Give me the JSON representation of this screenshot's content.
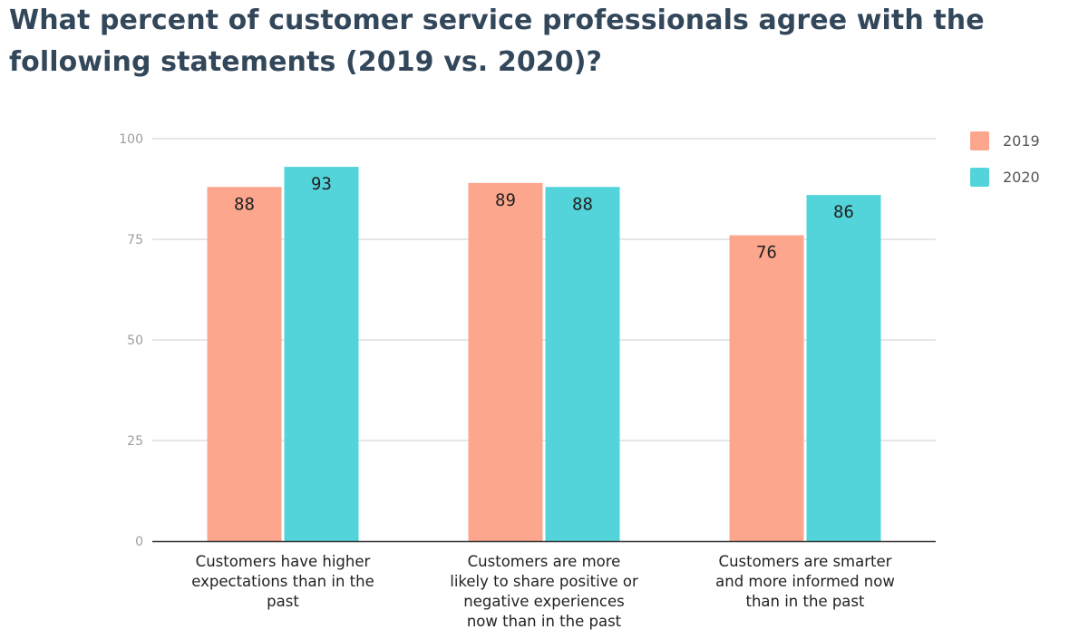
{
  "title": "What percent of customer service professionals agree with the following statements (2019 vs. 2020)?",
  "chart_data": {
    "type": "bar",
    "title": "What percent of customer service professionals agree with the following statements (2019 vs. 2020)?",
    "xlabel": "",
    "ylabel": "",
    "ylim": [
      0,
      100
    ],
    "yticks": [
      0,
      25,
      50,
      75,
      100
    ],
    "grid": true,
    "legend_position": "right",
    "categories": [
      [
        "Customers have higher",
        "expectations than in the",
        "past"
      ],
      [
        "Customers are more",
        "likely to share positive or",
        "negative experiences",
        "now than in the past"
      ],
      [
        "Customers are smarter",
        "and more informed now",
        "than in the past"
      ]
    ],
    "series": [
      {
        "name": "2019",
        "color": "#fca68d",
        "values": [
          88,
          89,
          76
        ]
      },
      {
        "name": "2020",
        "color": "#53d4da",
        "values": [
          93,
          88,
          86
        ]
      }
    ]
  }
}
